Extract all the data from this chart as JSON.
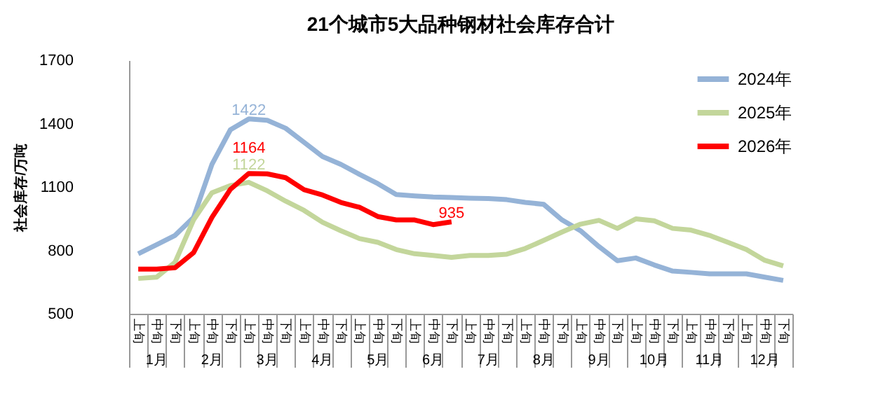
{
  "chart_data": {
    "type": "line",
    "title": "21个城市5大品种钢材社会库存合计",
    "ylabel": "社会库存/万吨",
    "categories": [
      "上旬",
      "中旬",
      "下旬",
      "上旬",
      "中旬",
      "下旬",
      "上旬",
      "中旬",
      "下旬",
      "上旬",
      "中旬",
      "下旬",
      "上旬",
      "中旬",
      "下旬",
      "上旬",
      "中旬",
      "下旬",
      "上旬",
      "中旬",
      "下旬",
      "上旬",
      "中旬",
      "下旬",
      "上旬",
      "中旬",
      "下旬",
      "上旬",
      "中旬",
      "下旬",
      "上旬",
      "中旬",
      "下旬",
      "上旬",
      "中旬",
      "下旬"
    ],
    "annotations": [
      "1月",
      "2月",
      "3月",
      "4月",
      "5月",
      "6月",
      "7月",
      "8月",
      "9月",
      "10月",
      "11月",
      "12月"
    ],
    "series": [
      {
        "name": "2024年",
        "color": "#95b3d7",
        "values": [
          784,
          827,
          871,
          956,
          1207,
          1371,
          1422,
          1416,
          1378,
          1311,
          1244,
          1207,
          1160,
          1116,
          1064,
          1058,
          1053,
          1050,
          1047,
          1045,
          1040,
          1027,
          1018,
          944,
          893,
          818,
          751,
          764,
          731,
          702,
          696,
          689,
          689,
          689,
          673,
          658
        ],
        "value_labels": [
          null,
          null,
          null,
          null,
          null,
          null,
          "1422",
          null,
          null,
          null,
          null,
          null,
          null,
          null,
          null,
          null,
          null,
          null,
          null,
          null,
          null,
          null,
          null,
          null,
          null,
          null,
          null,
          null,
          null,
          null,
          null,
          null,
          null,
          null,
          null,
          null
        ]
      },
      {
        "name": "2025年",
        "color": "#c3d69b",
        "values": [
          667,
          673,
          744,
          944,
          1073,
          1107,
          1122,
          1082,
          1033,
          989,
          933,
          893,
          856,
          838,
          804,
          784,
          776,
          767,
          776,
          776,
          782,
          809,
          847,
          887,
          924,
          942,
          904,
          949,
          940,
          904,
          896,
          871,
          838,
          804,
          753,
          727
        ],
        "value_labels": [
          null,
          null,
          null,
          null,
          null,
          null,
          "1122",
          null,
          null,
          null,
          null,
          null,
          null,
          null,
          null,
          null,
          null,
          null,
          null,
          null,
          null,
          null,
          null,
          null,
          null,
          null,
          null,
          null,
          null,
          null,
          null,
          null,
          null,
          null,
          null,
          null
        ]
      },
      {
        "name": "2026年",
        "color": "#ff0000",
        "values": [
          711,
          711,
          718,
          789,
          956,
          1089,
          1164,
          1162,
          1144,
          1087,
          1062,
          1027,
          1004,
          960,
          944,
          944,
          922,
          935,
          null,
          null,
          null,
          null,
          null,
          null,
          null,
          null,
          null,
          null,
          null,
          null,
          null,
          null,
          null,
          null,
          null,
          null
        ],
        "value_labels": [
          null,
          null,
          null,
          null,
          null,
          null,
          "1164",
          null,
          null,
          null,
          null,
          null,
          null,
          null,
          null,
          null,
          null,
          "935",
          null,
          null,
          null,
          null,
          null,
          null,
          null,
          null,
          null,
          null,
          null,
          null,
          null,
          null,
          null,
          null,
          null,
          null
        ]
      }
    ],
    "ylim": [
      500,
      1700
    ],
    "yticks": [
      500,
      800,
      1100,
      1400,
      1700
    ],
    "legend": "top right"
  }
}
